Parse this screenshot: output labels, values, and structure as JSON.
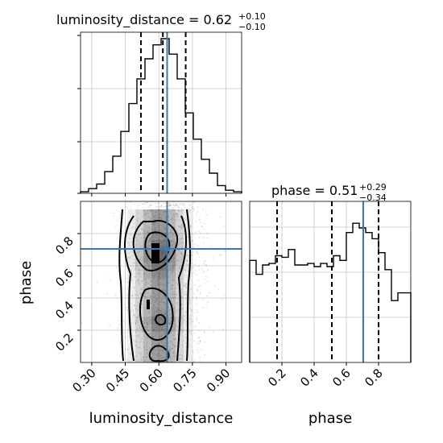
{
  "chart_data": {
    "type": "corner",
    "accent_color": "#3b78b4",
    "grid": true,
    "parameters": [
      {
        "name": "luminosity_distance",
        "median": "0.62",
        "plus": "+0.10",
        "minus": "−0.10",
        "truth": 0.637,
        "quantiles": [
          0.52,
          0.618,
          0.72
        ],
        "range": [
          0.25,
          0.97
        ],
        "ticks": [
          0.3,
          0.45,
          0.6,
          0.75,
          0.9
        ],
        "tick_labels": [
          "0.30",
          "0.45",
          "0.60",
          "0.75",
          "0.90"
        ],
        "xlabel": "luminosity_distance",
        "hist": {
          "edges_start": 0.25,
          "bin_width": 0.036,
          "counts": [
            0.01,
            0.03,
            0.06,
            0.14,
            0.24,
            0.4,
            0.58,
            0.74,
            0.87,
            0.96,
            1.0,
            0.9,
            0.74,
            0.52,
            0.35,
            0.22,
            0.13,
            0.05,
            0.02,
            0.01
          ]
        }
      },
      {
        "name": "phase",
        "median": "0.51",
        "plus": "+0.29",
        "minus": "−0.34",
        "truth": 0.705,
        "quantiles": [
          0.17,
          0.51,
          0.8
        ],
        "range": [
          0.0,
          1.0
        ],
        "ticks": [
          0.2,
          0.4,
          0.6,
          0.8
        ],
        "tick_labels": [
          "0.2",
          "0.4",
          "0.6",
          "0.8"
        ],
        "xlabel": "phase",
        "ylabel": "phase",
        "hist": {
          "edges_start": 0.0,
          "bin_width": 0.04,
          "counts": [
            0.66,
            0.57,
            0.63,
            0.64,
            0.69,
            0.68,
            0.73,
            0.63,
            0.63,
            0.64,
            0.62,
            0.64,
            0.62,
            0.69,
            0.66,
            0.84,
            0.9,
            0.87,
            0.84,
            0.8,
            0.71,
            0.6,
            0.4,
            0.45,
            0.45
          ]
        }
      }
    ],
    "title_prefix": " = "
  }
}
